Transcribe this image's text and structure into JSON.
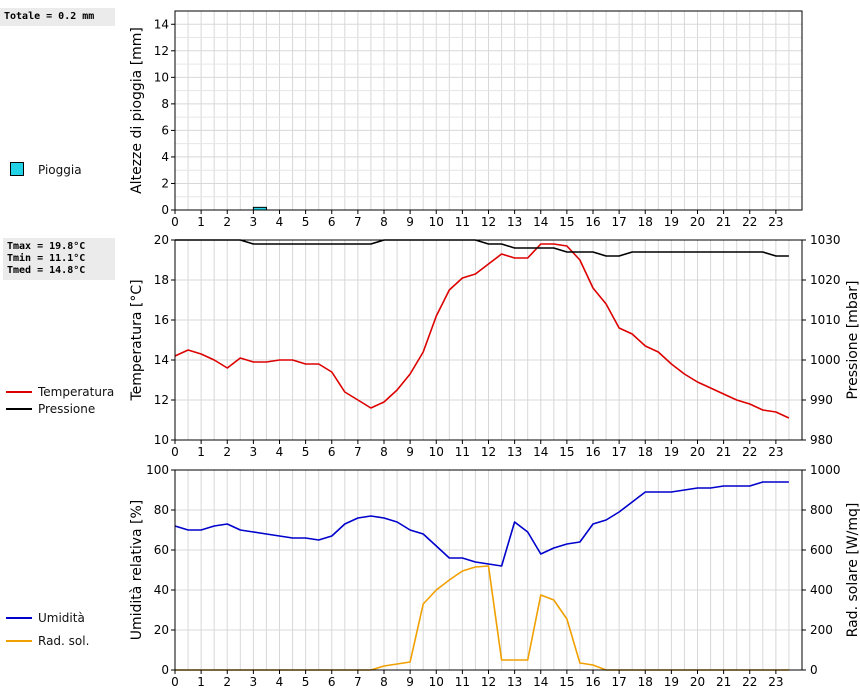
{
  "stats": {
    "rain_total": "Totale = 0.2 mm",
    "tmax": "Tmax = 19.8°C",
    "tmin": "Tmin = 11.1°C",
    "tmed": "Tmed = 14.8°C"
  },
  "colors": {
    "rain": "#22d3e6",
    "temperature": "#dd0000",
    "pressure": "#000000",
    "humidity": "#0000cc",
    "radiation": "#f0a000",
    "grid": "#d8d8d8"
  },
  "chart_data": [
    {
      "type": "bar",
      "ylabel": "Altezze di pioggia [mm]",
      "ylim": [
        0,
        15
      ],
      "yticks": [
        0,
        2,
        4,
        6,
        8,
        10,
        12,
        14
      ],
      "xlim": [
        0,
        24
      ],
      "xticks": [
        0,
        1,
        2,
        3,
        4,
        5,
        6,
        7,
        8,
        9,
        10,
        11,
        12,
        13,
        14,
        15,
        16,
        17,
        18,
        19,
        20,
        21,
        22,
        23
      ],
      "grid": true,
      "series": [
        {
          "name": "Pioggia",
          "x": [
            3.25
          ],
          "values": [
            0.2
          ]
        }
      ]
    },
    {
      "type": "line",
      "ylabel": "Temperatura [°C]",
      "y2label": "Pressione [mbar]",
      "ylim": [
        10,
        20
      ],
      "yticks": [
        10,
        12,
        14,
        16,
        18,
        20
      ],
      "y2lim": [
        980,
        1030
      ],
      "y2ticks": [
        980,
        990,
        1000,
        1010,
        1020,
        1030
      ],
      "xlim": [
        0,
        24
      ],
      "xticks": [
        0,
        1,
        2,
        3,
        4,
        5,
        6,
        7,
        8,
        9,
        10,
        11,
        12,
        13,
        14,
        15,
        16,
        17,
        18,
        19,
        20,
        21,
        22,
        23
      ],
      "grid": true,
      "series": [
        {
          "name": "Temperatura",
          "axis": "left",
          "x": [
            0,
            0.5,
            1,
            1.5,
            2,
            2.5,
            3,
            3.5,
            4,
            4.5,
            5,
            5.5,
            6,
            6.5,
            7,
            7.5,
            8,
            8.5,
            9,
            9.5,
            10,
            10.5,
            11,
            11.5,
            12,
            12.5,
            13,
            13.5,
            14,
            14.5,
            15,
            15.5,
            16,
            16.5,
            17,
            17.5,
            18,
            18.5,
            19,
            19.5,
            20,
            20.5,
            21,
            21.5,
            22,
            22.5,
            23,
            23.5
          ],
          "values": [
            14.2,
            14.5,
            14.3,
            14.0,
            13.6,
            14.1,
            13.9,
            13.9,
            14.0,
            14.0,
            13.8,
            13.8,
            13.4,
            12.4,
            12.0,
            11.6,
            11.9,
            12.5,
            13.3,
            14.4,
            16.2,
            17.5,
            18.1,
            18.3,
            18.8,
            19.3,
            19.1,
            19.1,
            19.8,
            19.8,
            19.7,
            19.0,
            17.6,
            16.8,
            15.6,
            15.3,
            14.7,
            14.4,
            13.8,
            13.3,
            12.9,
            12.6,
            12.3,
            12.0,
            11.8,
            11.5,
            11.4,
            11.1
          ]
        },
        {
          "name": "Pressione",
          "axis": "right",
          "x": [
            0,
            0.5,
            1,
            1.5,
            2,
            2.5,
            3,
            3.5,
            4,
            4.5,
            5,
            5.5,
            6,
            6.5,
            7,
            7.5,
            8,
            8.5,
            9,
            9.5,
            10,
            10.5,
            11,
            11.5,
            12,
            12.5,
            13,
            13.5,
            14,
            14.5,
            15,
            15.5,
            16,
            16.5,
            17,
            17.5,
            18,
            18.5,
            19,
            19.5,
            20,
            20.5,
            21,
            21.5,
            22,
            22.5,
            23,
            23.5
          ],
          "values": [
            1030,
            1030,
            1030,
            1030,
            1030,
            1030,
            1029,
            1029,
            1029,
            1029,
            1029,
            1029,
            1029,
            1029,
            1029,
            1029,
            1030,
            1030,
            1030,
            1030,
            1030,
            1030,
            1030,
            1030,
            1029,
            1029,
            1028,
            1028,
            1028,
            1028,
            1027,
            1027,
            1027,
            1026,
            1026,
            1027,
            1027,
            1027,
            1027,
            1027,
            1027,
            1027,
            1027,
            1027,
            1027,
            1027,
            1026,
            1026
          ]
        }
      ]
    },
    {
      "type": "line",
      "ylabel": "Umidità relativa [%]",
      "y2label": "Rad. solare [W/mq]",
      "ylim": [
        0,
        100
      ],
      "yticks": [
        0,
        20,
        40,
        60,
        80,
        100
      ],
      "y2lim": [
        0,
        1000
      ],
      "y2ticks": [
        0,
        200,
        400,
        600,
        800,
        1000
      ],
      "xlim": [
        0,
        24
      ],
      "xticks": [
        0,
        1,
        2,
        3,
        4,
        5,
        6,
        7,
        8,
        9,
        10,
        11,
        12,
        13,
        14,
        15,
        16,
        17,
        18,
        19,
        20,
        21,
        22,
        23
      ],
      "grid": true,
      "series": [
        {
          "name": "Umidità",
          "axis": "left",
          "x": [
            0,
            0.5,
            1,
            1.5,
            2,
            2.5,
            3,
            3.5,
            4,
            4.5,
            5,
            5.5,
            6,
            6.5,
            7,
            7.5,
            8,
            8.5,
            9,
            9.5,
            10,
            10.5,
            11,
            11.5,
            12,
            12.5,
            13,
            13.5,
            14,
            14.5,
            15,
            15.5,
            16,
            16.5,
            17,
            17.5,
            18,
            18.5,
            19,
            19.5,
            20,
            20.5,
            21,
            21.5,
            22,
            22.5,
            23,
            23.5
          ],
          "values": [
            72,
            70,
            70,
            72,
            73,
            70,
            69,
            68,
            67,
            66,
            66,
            65,
            67,
            73,
            76,
            77,
            76,
            74,
            70,
            68,
            62,
            56,
            56,
            54,
            53,
            52,
            74,
            69,
            58,
            61,
            63,
            64,
            73,
            75,
            79,
            84,
            89,
            89,
            89,
            90,
            91,
            91,
            92,
            92,
            92,
            94,
            94,
            94
          ]
        },
        {
          "name": "Rad. sol.",
          "axis": "right",
          "x": [
            0,
            0.5,
            1,
            1.5,
            2,
            2.5,
            3,
            3.5,
            4,
            4.5,
            5,
            5.5,
            6,
            6.5,
            7,
            7.5,
            8,
            8.5,
            9,
            9.5,
            10,
            10.5,
            11,
            11.5,
            12,
            12.5,
            13,
            13.5,
            14,
            14.5,
            15,
            15.5,
            16,
            16.5,
            17,
            17.5,
            18,
            18.5,
            19,
            19.5,
            20,
            20.5,
            21,
            21.5,
            22,
            22.5,
            23,
            23.5
          ],
          "values": [
            0,
            0,
            0,
            0,
            0,
            0,
            0,
            0,
            0,
            0,
            0,
            0,
            0,
            0,
            0,
            0,
            20,
            30,
            40,
            330,
            400,
            450,
            495,
            515,
            520,
            50,
            50,
            50,
            375,
            350,
            255,
            35,
            25,
            0,
            0,
            0,
            0,
            0,
            0,
            0,
            0,
            0,
            0,
            0,
            0,
            0,
            0,
            0
          ]
        }
      ]
    }
  ],
  "legend": {
    "rain": "Pioggia",
    "temperature": "Temperatura",
    "pressure": "Pressione",
    "humidity": "Umidità",
    "radiation": "Rad. sol."
  }
}
